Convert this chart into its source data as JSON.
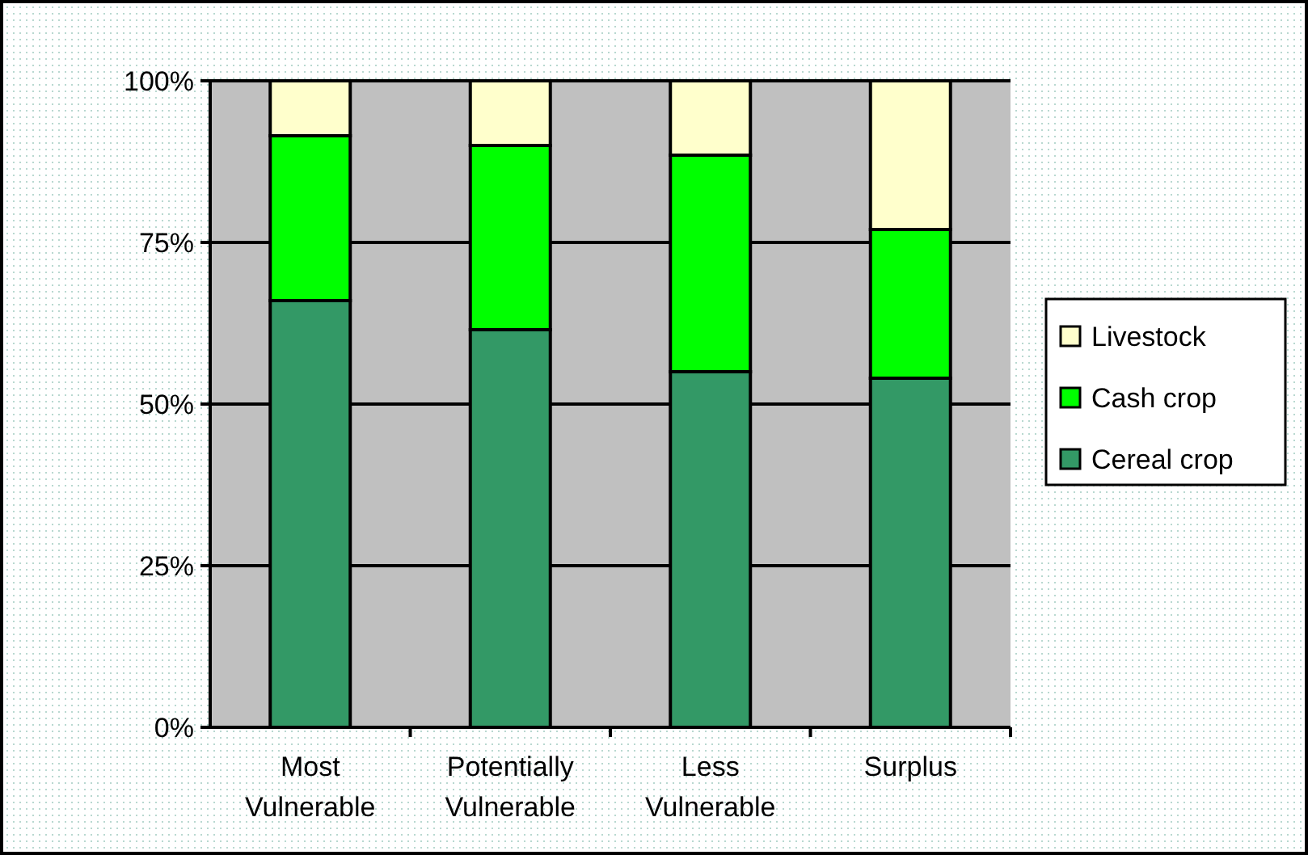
{
  "chart_data": {
    "type": "bar",
    "stacked": true,
    "categories": [
      "Most Vulnerable",
      "Potentially Vulnerable",
      "Less Vulnerable",
      "Surplus"
    ],
    "series": [
      {
        "name": "Cereal crop",
        "color": "#339966",
        "values": [
          66,
          61.5,
          55,
          54
        ]
      },
      {
        "name": "Cash crop",
        "color": "#00ff00",
        "values": [
          25.5,
          28.5,
          33.5,
          23
        ]
      },
      {
        "name": "Livestock",
        "color": "#ffffcc",
        "values": [
          8.5,
          10,
          11.5,
          23
        ]
      }
    ],
    "ylim": [
      0,
      100
    ],
    "yticks": [
      {
        "value": 0,
        "label": "0%"
      },
      {
        "value": 25,
        "label": "25%"
      },
      {
        "value": 50,
        "label": "50%"
      },
      {
        "value": 75,
        "label": "75%"
      },
      {
        "value": 100,
        "label": "100%"
      }
    ],
    "grid": "y",
    "legend": "right"
  }
}
